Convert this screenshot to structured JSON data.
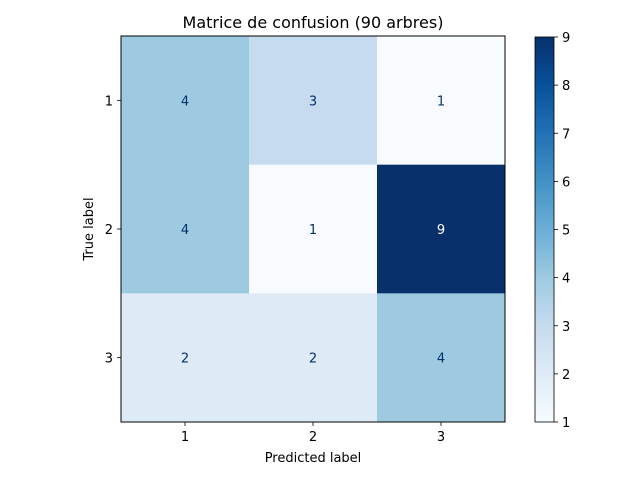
{
  "chart_data": {
    "type": "heatmap",
    "title": "Matrice de confusion (90 arbres)",
    "xlabel": "Predicted label",
    "ylabel": "True label",
    "x_categories": [
      "1",
      "2",
      "3"
    ],
    "y_categories": [
      "1",
      "2",
      "3"
    ],
    "values": [
      [
        4,
        3,
        1
      ],
      [
        4,
        1,
        9
      ],
      [
        2,
        2,
        4
      ]
    ],
    "colorscale": "Blues",
    "vmin": 1,
    "vmax": 9,
    "colorbar_ticks": [
      "1",
      "2",
      "3",
      "4",
      "5",
      "6",
      "7",
      "8",
      "9"
    ],
    "grid": false
  }
}
